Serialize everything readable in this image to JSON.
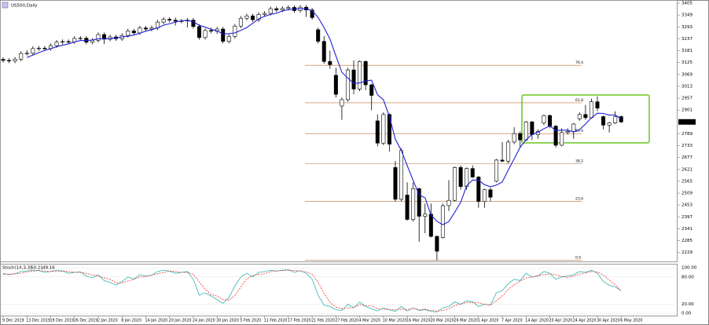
{
  "chart_data": [
    {
      "type": "candlestick",
      "title": "US500,Daily",
      "categories": [
        "9 Dec 2019",
        null,
        null,
        null,
        "13 Dec 2019",
        null,
        null,
        null,
        "19 Dec 2019",
        null,
        null,
        null,
        "26 Dec 2019",
        null,
        null,
        null,
        "2 Jan 2020",
        null,
        null,
        null,
        "8 Jan 2020",
        null,
        null,
        null,
        "14 Jan 2020",
        null,
        null,
        null,
        "20 Jan 2020",
        null,
        null,
        null,
        "24 Jan 2020",
        null,
        null,
        null,
        "30 Jan 2020",
        null,
        null,
        null,
        "5 Feb 2020",
        null,
        null,
        null,
        "11 Feb 2020",
        null,
        null,
        null,
        "17 Feb 2020",
        null,
        null,
        null,
        "21 Feb 2020",
        null,
        null,
        null,
        "27 Feb 2020",
        null,
        null,
        null,
        "4 Mar 2020",
        null,
        null,
        null,
        "10 Mar 2020",
        null,
        null,
        null,
        "16 Mar 2020",
        null,
        null,
        null,
        "20 Mar 2020",
        null,
        null,
        null,
        "26 Mar 2020",
        null,
        null,
        null,
        "1 Apr 2020",
        null,
        null,
        null,
        "7 Apr 2020",
        null,
        null,
        null,
        "14 Apr 2020",
        null,
        null,
        null,
        "20 Apr 2020",
        null,
        null,
        null,
        "24 Apr 2020",
        null,
        null,
        null,
        "30 Apr 2020",
        null,
        null,
        null,
        "6 May 2020"
      ],
      "open": [
        3140,
        3135,
        3132,
        3141,
        3168,
        3169,
        3191,
        3193,
        3191,
        3205,
        3221,
        3224,
        3223,
        3239,
        3240,
        3221,
        3230,
        3257,
        3235,
        3246,
        3237,
        3253,
        3274,
        3265,
        3288,
        3283,
        3289,
        3316,
        3329,
        3325,
        3320,
        3321,
        3325,
        3295,
        3243,
        3276,
        3273,
        3283,
        3225,
        3248,
        3297,
        3334,
        3345,
        3327,
        3352,
        3357,
        3379,
        3373,
        3380,
        3385,
        3370,
        3386,
        3373,
        3280,
        3225,
        3130,
        3065,
        2920,
        2950,
        3090,
        3000,
        3130,
        3020,
        2850,
        2745,
        2880,
        2630,
        2480,
        2500,
        2385,
        2530,
        2400,
        2410,
        2305,
        2300,
        2450,
        2475,
        2630,
        2540,
        2625,
        2585,
        2470,
        2525,
        2565,
        2665,
        2660,
        2750,
        2790,
        2760,
        2845,
        2785,
        2840,
        2875,
        2825,
        2735,
        2795,
        2800,
        2860,
        2880,
        2865,
        2940,
        2870,
        2830,
        2840,
        2870
      ],
      "high": [
        3150,
        3145,
        3151,
        3178,
        3183,
        3201,
        3203,
        3203,
        3215,
        3231,
        3234,
        3234,
        3249,
        3250,
        3250,
        3240,
        3267,
        3267,
        3256,
        3256,
        3263,
        3284,
        3284,
        3298,
        3298,
        3299,
        3326,
        3339,
        3339,
        3337,
        3331,
        3335,
        3335,
        3305,
        3286,
        3290,
        3293,
        3293,
        3258,
        3307,
        3344,
        3355,
        3355,
        3362,
        3367,
        3389,
        3389,
        3390,
        3395,
        3395,
        3396,
        3396,
        3383,
        3290,
        3250,
        3180,
        3100,
        2960,
        3100,
        3135,
        3135,
        3135,
        3025,
        2880,
        2890,
        2885,
        2660,
        2720,
        2560,
        2560,
        2535,
        2460,
        2460,
        2310,
        2460,
        2570,
        2635,
        2640,
        2630,
        2640,
        2590,
        2530,
        2535,
        2670,
        2750,
        2760,
        2820,
        2800,
        2850,
        2850,
        2810,
        2880,
        2880,
        2830,
        2815,
        2815,
        2840,
        2890,
        2925,
        2955,
        2965,
        2875,
        2845,
        2895,
        2875
      ],
      "low": [
        3125,
        3122,
        3122,
        3131,
        3158,
        3159,
        3181,
        3181,
        3181,
        3195,
        3211,
        3213,
        3213,
        3229,
        3211,
        3211,
        3220,
        3212,
        3225,
        3227,
        3227,
        3243,
        3255,
        3255,
        3273,
        3273,
        3279,
        3306,
        3315,
        3300,
        3310,
        3290,
        3285,
        3233,
        3233,
        3263,
        3260,
        3215,
        3215,
        3238,
        3287,
        3324,
        3317,
        3317,
        3342,
        3347,
        3363,
        3363,
        3370,
        3360,
        3360,
        3340,
        3327,
        3215,
        3120,
        3095,
        2960,
        2855,
        2940,
        2975,
        2990,
        2995,
        2900,
        2730,
        2735,
        2705,
        2470,
        2470,
        2380,
        2375,
        2280,
        2320,
        2300,
        2192,
        2295,
        2425,
        2470,
        2525,
        2525,
        2580,
        2440,
        2440,
        2470,
        2560,
        2655,
        2650,
        2740,
        2725,
        2755,
        2760,
        2765,
        2830,
        2815,
        2725,
        2730,
        2785,
        2765,
        2850,
        2855,
        2860,
        2895,
        2810,
        2795,
        2835,
        2840
      ],
      "close": [
        3135,
        3132,
        3141,
        3168,
        3169,
        3191,
        3193,
        3191,
        3205,
        3221,
        3224,
        3223,
        3239,
        3240,
        3221,
        3230,
        3257,
        3235,
        3246,
        3237,
        3253,
        3274,
        3265,
        3288,
        3283,
        3289,
        3316,
        3329,
        3325,
        3320,
        3321,
        3325,
        3295,
        3243,
        3276,
        3273,
        3283,
        3225,
        3248,
        3297,
        3334,
        3345,
        3327,
        3352,
        3357,
        3379,
        3373,
        3380,
        3385,
        3370,
        3386,
        3373,
        3337,
        3225,
        3130,
        3115,
        2975,
        2950,
        3090,
        3000,
        3130,
        3020,
        2970,
        2745,
        2880,
        2740,
        2480,
        2710,
        2385,
        2530,
        2400,
        2410,
        2305,
        2235,
        2450,
        2475,
        2630,
        2540,
        2625,
        2585,
        2470,
        2525,
        2490,
        2665,
        2660,
        2750,
        2790,
        2760,
        2845,
        2785,
        2800,
        2875,
        2825,
        2735,
        2795,
        2800,
        2835,
        2880,
        2865,
        2940,
        2910,
        2830,
        2840,
        2870,
        2845
      ],
      "up_color": "#ffffff",
      "down_color": "#000000",
      "moving_average": {
        "color": "#1f1fd6",
        "values": [
          null,
          null,
          null,
          null,
          3149,
          3160,
          3172,
          3182,
          3190,
          3200,
          3207,
          3213,
          3222,
          3229,
          3229,
          3231,
          3237,
          3237,
          3238,
          3241,
          3246,
          3249,
          3255,
          3263,
          3273,
          3280,
          3288,
          3301,
          3308,
          3316,
          3322,
          3324,
          3317,
          3301,
          3292,
          3282,
          3274,
          3260,
          3261,
          3265,
          3277,
          3290,
          3310,
          3331,
          3343,
          3352,
          3358,
          3368,
          3375,
          3377,
          3379,
          3379,
          3370,
          3338,
          3290,
          3236,
          3156,
          3079,
          3052,
          3026,
          3029,
          3038,
          3042,
          2973,
          2949,
          2871,
          2763,
          2711,
          2639,
          2569,
          2501,
          2487,
          2406,
          2376,
          2360,
          2375,
          2419,
          2466,
          2544,
          2571,
          2570,
          2549,
          2539,
          2547,
          2562,
          2618,
          2671,
          2725,
          2761,
          2786,
          2796,
          2813,
          2826,
          2804,
          2806,
          2806,
          2798,
          2809,
          2835,
          2864,
          2886,
          2885,
          2877,
          2878,
          2859
        ]
      },
      "fibonacci": {
        "color": "#b8703a",
        "levels": [
          {
            "value": 3112,
            "label": "76.4"
          },
          {
            "value": 2935,
            "label": "61.8"
          },
          {
            "value": 2790,
            "label": "50.0"
          },
          {
            "value": 2648,
            "label": "38.2"
          },
          {
            "value": 2471,
            "label": "23.6"
          },
          {
            "value": 2192,
            "label": "0.0"
          }
        ]
      },
      "ylim": [
        2187,
        3420
      ],
      "yticks": [
        3405,
        3349,
        3293,
        3237,
        3181,
        3125,
        3069,
        3013,
        2957,
        2901,
        2789,
        2733,
        2677,
        2621,
        2565,
        2509,
        2453,
        2397,
        2341,
        2285,
        2229
      ]
    },
    {
      "type": "line",
      "title": "Stoch(14,3,3)",
      "series": [
        {
          "color": "#2fb5b0",
          "dashed": false,
          "values": [
            88,
            85,
            87,
            92,
            93,
            95,
            94,
            90,
            92,
            95,
            93,
            88,
            90,
            91,
            82,
            78,
            85,
            72,
            68,
            62,
            70,
            80,
            75,
            85,
            82,
            84,
            92,
            95,
            93,
            88,
            90,
            92,
            75,
            40,
            45,
            38,
            30,
            22,
            35,
            60,
            80,
            88,
            80,
            90,
            92,
            95,
            93,
            95,
            96,
            90,
            94,
            88,
            75,
            40,
            18,
            15,
            8,
            6,
            20,
            12,
            25,
            15,
            10,
            5,
            12,
            8,
            4,
            15,
            5,
            12,
            6,
            8,
            4,
            3,
            12,
            15,
            25,
            20,
            28,
            25,
            15,
            20,
            18,
            45,
            50,
            65,
            75,
            72,
            88,
            80,
            82,
            92,
            88,
            75,
            80,
            82,
            85,
            92,
            90,
            95,
            88,
            70,
            62,
            58,
            50.21
          ]
        },
        {
          "color": "#e8302a",
          "dashed": true,
          "values": [
            86,
            86,
            87,
            88,
            91,
            93,
            94,
            93,
            92,
            92,
            93,
            92,
            90,
            90,
            88,
            84,
            82,
            78,
            75,
            67,
            67,
            71,
            75,
            80,
            81,
            84,
            87,
            90,
            93,
            92,
            90,
            90,
            86,
            69,
            53,
            41,
            38,
            30,
            29,
            39,
            58,
            76,
            83,
            86,
            87,
            92,
            93,
            94,
            95,
            94,
            93,
            91,
            86,
            68,
            44,
            24,
            14,
            10,
            11,
            13,
            19,
            17,
            17,
            10,
            9,
            8,
            8,
            9,
            8,
            11,
            8,
            9,
            6,
            5,
            6,
            10,
            17,
            20,
            24,
            24,
            23,
            20,
            18,
            28,
            38,
            53,
            63,
            71,
            78,
            80,
            83,
            85,
            87,
            85,
            81,
            79,
            82,
            86,
            89,
            92,
            91,
            84,
            73,
            63,
            49.16
          ]
        }
      ],
      "ylim": [
        -5,
        109
      ],
      "yticks": [
        {
          "value": 100,
          "label": "100.00"
        },
        {
          "value": 80,
          "label": "80.00"
        },
        {
          "value": 20,
          "label": "20.00"
        },
        {
          "value": 0,
          "label": "0.00"
        }
      ]
    }
  ]
}
